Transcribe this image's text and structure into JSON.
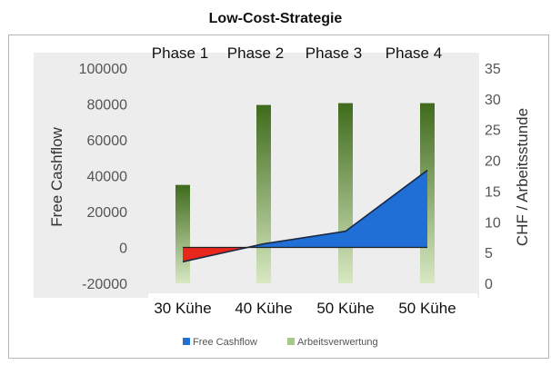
{
  "chart_data": {
    "type": "area",
    "title": "Low-Cost-Strategie",
    "phases": [
      "Phase 1",
      "Phase 2",
      "Phase 3",
      "Phase 4"
    ],
    "categories": [
      "30 Kühe",
      "40 Kühe",
      "50 Kühe",
      "50 Kühe"
    ],
    "ylabel": "Free Cashflow",
    "y2label": "CHF / Arbeitsstunde",
    "ylim": [
      -20000,
      100000
    ],
    "yticks": [
      "-20000",
      "0",
      "20000",
      "40000",
      "60000",
      "80000",
      "100000"
    ],
    "y2lim": [
      0,
      35
    ],
    "y2ticks": [
      "0",
      "5",
      "10",
      "15",
      "20",
      "25",
      "30",
      "35"
    ],
    "series": [
      {
        "name": "Free Cashflow",
        "type": "area",
        "axis": "left",
        "values": [
          -8000,
          2000,
          9000,
          43000
        ]
      },
      {
        "name": "Arbeitsverwertung",
        "type": "bar",
        "axis": "right",
        "values": [
          16,
          29,
          29.3,
          29.3
        ]
      }
    ],
    "colors": {
      "area_positive": "#1f6fd6",
      "area_negative": "#e8261c",
      "bar_top": "#3f6b1c",
      "bar_bottom": "#d8e8c2"
    },
    "legend_position": "bottom"
  }
}
